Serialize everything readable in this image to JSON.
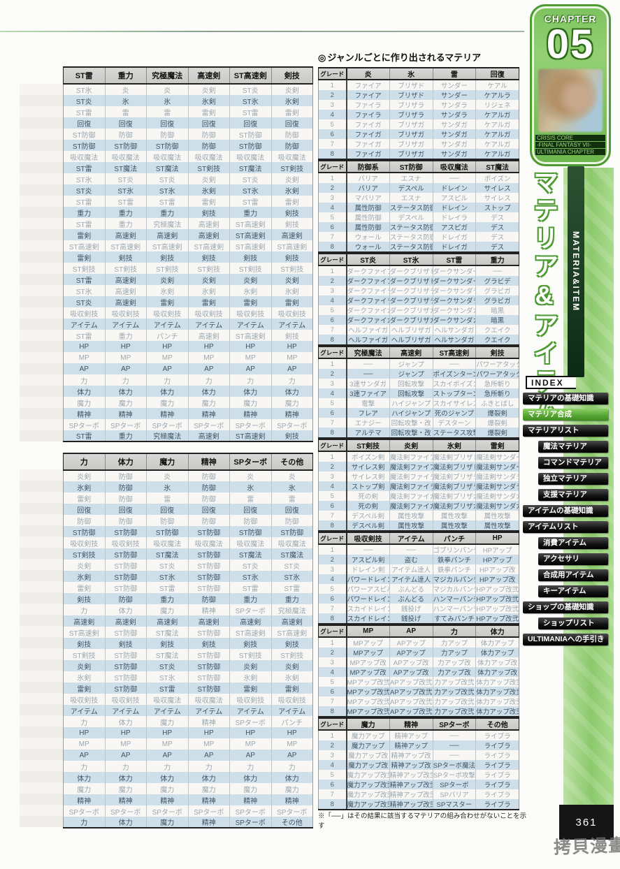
{
  "left_tables": [
    {
      "headers": [
        "ST雷",
        "重力",
        "究極魔法",
        "高速剣",
        "ST高速剣",
        "剣技"
      ],
      "rows": [
        [
          "ST氷",
          "炎",
          "炎",
          "炎剣",
          "ST炎",
          "炎剣"
        ],
        [
          "ST炎",
          "氷",
          "氷",
          "氷剣",
          "ST氷",
          "氷剣"
        ],
        [
          "ST雷",
          "雷",
          "雷",
          "雷剣",
          "ST雷",
          "雷剣"
        ],
        [
          "回復",
          "回復",
          "回復",
          "回復",
          "回復",
          "回復"
        ],
        [
          "ST防御",
          "防御",
          "防御",
          "防御",
          "ST防御",
          "防御"
        ],
        [
          "ST防御",
          "ST防御",
          "ST防御",
          "防御",
          "ST防御",
          "防御"
        ],
        [
          "吸収魔法",
          "吸収魔法",
          "吸収魔法",
          "吸収魔法",
          "吸収魔法",
          "吸収魔法"
        ],
        [
          "ST雷",
          "ST魔法",
          "ST魔法",
          "ST剣技",
          "ST魔法",
          "ST剣技"
        ],
        [
          "ST氷",
          "ST炎",
          "ST炎",
          "炎剣",
          "ST炎",
          "炎剣"
        ],
        [
          "ST炎",
          "ST氷",
          "ST氷",
          "氷剣",
          "ST氷",
          "氷剣"
        ],
        [
          "ST雷",
          "ST雷",
          "ST雷",
          "雷剣",
          "ST雷",
          "雷剣"
        ],
        [
          "重力",
          "重力",
          "重力",
          "剣技",
          "重力",
          "剣技"
        ],
        [
          "ST雷",
          "重力",
          "究極魔法",
          "高速剣",
          "ST高速剣",
          "剣技"
        ],
        [
          "雷剣",
          "高速剣",
          "高速剣",
          "高速剣",
          "ST高速剣",
          "高速剣"
        ],
        [
          "ST高速剣",
          "ST高速剣",
          "ST高速剣",
          "ST高速剣",
          "ST高速剣",
          "ST高速剣"
        ],
        [
          "雷剣",
          "剣技",
          "剣技",
          "剣技",
          "剣技",
          "剣技"
        ],
        [
          "ST剣技",
          "ST剣技",
          "ST剣技",
          "ST剣技",
          "ST剣技",
          "ST剣技"
        ],
        [
          "ST雷",
          "高速剣",
          "炎剣",
          "炎剣",
          "炎剣",
          "炎剣"
        ],
        [
          "ST氷",
          "高速剣",
          "氷剣",
          "氷剣",
          "氷剣",
          "氷剣"
        ],
        [
          "ST炎",
          "高速剣",
          "雷剣",
          "雷剣",
          "雷剣",
          "雷剣"
        ],
        [
          "吸収剣技",
          "吸収剣技",
          "吸収剣技",
          "吸収剣技",
          "吸収剣技",
          "吸収剣技"
        ],
        [
          "アイテム",
          "アイテム",
          "アイテム",
          "アイテム",
          "アイテム",
          "アイテム"
        ],
        [
          "ST雷",
          "重力",
          "パンチ",
          "高速剣",
          "ST高速剣",
          "剣技"
        ],
        [
          "HP",
          "HP",
          "HP",
          "HP",
          "HP",
          "HP"
        ],
        [
          "MP",
          "MP",
          "MP",
          "MP",
          "MP",
          "MP"
        ],
        [
          "AP",
          "AP",
          "AP",
          "AP",
          "AP",
          "AP"
        ],
        [
          "力",
          "力",
          "力",
          "力",
          "力",
          "力"
        ],
        [
          "体力",
          "体力",
          "体力",
          "体力",
          "体力",
          "体力"
        ],
        [
          "魔力",
          "魔力",
          "魔力",
          "魔力",
          "魔力",
          "魔力"
        ],
        [
          "精神",
          "精神",
          "精神",
          "精神",
          "精神",
          "精神"
        ],
        [
          "SPターボ",
          "SPターボ",
          "SPターボ",
          "SPターボ",
          "SPターボ",
          "SPターボ"
        ],
        [
          "ST雷",
          "重力",
          "究極魔法",
          "高速剣",
          "ST高速剣",
          "剣技"
        ]
      ]
    },
    {
      "headers": [
        "力",
        "体力",
        "魔力",
        "精神",
        "SPターボ",
        "その他"
      ],
      "rows": [
        [
          "炎剣",
          "防御",
          "炎",
          "防御",
          "炎",
          "炎"
        ],
        [
          "氷剣",
          "防御",
          "氷",
          "防御",
          "氷",
          "氷"
        ],
        [
          "雷剣",
          "防御",
          "雷",
          "防御",
          "雷",
          "雷"
        ],
        [
          "回復",
          "回復",
          "回復",
          "回復",
          "回復",
          "回復"
        ],
        [
          "防御",
          "防御",
          "防御",
          "防御",
          "防御",
          "防御"
        ],
        [
          "ST防御",
          "ST防御",
          "ST防御",
          "ST防御",
          "ST防御",
          "ST防御"
        ],
        [
          "吸収剣技",
          "吸収剣技",
          "吸収魔法",
          "吸収魔法",
          "吸収魔法",
          "吸収魔法"
        ],
        [
          "ST剣技",
          "ST防御",
          "ST魔法",
          "ST防御",
          "ST魔法",
          "ST魔法"
        ],
        [
          "炎剣",
          "ST防御",
          "ST炎",
          "ST防御",
          "ST炎",
          "ST炎"
        ],
        [
          "氷剣",
          "ST防御",
          "ST氷",
          "ST防御",
          "ST氷",
          "ST氷"
        ],
        [
          "雷剣",
          "ST防御",
          "ST雷",
          "ST防御",
          "ST雷",
          "ST雷"
        ],
        [
          "剣技",
          "防御",
          "重力",
          "防御",
          "重力",
          "重力"
        ],
        [
          "力",
          "体力",
          "魔力",
          "精神",
          "SPターボ",
          "究極魔法"
        ],
        [
          "高速剣",
          "高速剣",
          "高速剣",
          "高速剣",
          "高速剣",
          "高速剣"
        ],
        [
          "ST高速剣",
          "ST防御",
          "ST魔法",
          "ST防御",
          "ST高速剣",
          "ST高速剣"
        ],
        [
          "剣技",
          "剣技",
          "剣技",
          "剣技",
          "剣技",
          "剣技"
        ],
        [
          "ST剣技",
          "ST防御",
          "ST魔法",
          "ST防御",
          "ST剣技",
          "ST剣技"
        ],
        [
          "炎剣",
          "ST防御",
          "ST炎",
          "ST防御",
          "炎剣",
          "炎剣"
        ],
        [
          "氷剣",
          "ST防御",
          "ST氷",
          "ST防御",
          "氷剣",
          "氷剣"
        ],
        [
          "雷剣",
          "ST防御",
          "ST雷",
          "ST防御",
          "雷剣",
          "雷剣"
        ],
        [
          "吸収剣技",
          "吸収剣技",
          "吸収魔法",
          "吸収魔法",
          "吸収剣技",
          "吸収剣技"
        ],
        [
          "アイテム",
          "アイテム",
          "アイテム",
          "アイテム",
          "アイテム",
          "アイテム"
        ],
        [
          "力",
          "体力",
          "魔力",
          "精神",
          "SPターボ",
          "パンチ"
        ],
        [
          "HP",
          "HP",
          "HP",
          "HP",
          "HP",
          "HP"
        ],
        [
          "MP",
          "MP",
          "MP",
          "MP",
          "MP",
          "MP"
        ],
        [
          "AP",
          "AP",
          "AP",
          "AP",
          "AP",
          "AP"
        ],
        [
          "力",
          "力",
          "力",
          "力",
          "力",
          "力"
        ],
        [
          "体力",
          "体力",
          "体力",
          "体力",
          "体力",
          "体力"
        ],
        [
          "魔力",
          "魔力",
          "魔力",
          "魔力",
          "魔力",
          "魔力"
        ],
        [
          "精神",
          "精神",
          "精神",
          "精神",
          "精神",
          "精神"
        ],
        [
          "SPターボ",
          "SPターボ",
          "SPターボ",
          "SPターボ",
          "SPターボ",
          "SPターボ"
        ],
        [
          "力",
          "体力",
          "魔力",
          "精神",
          "SPターボ",
          "その他"
        ]
      ]
    }
  ],
  "genre_section": {
    "title": "ジャンルごとに作り出されるマテリア",
    "bullet": "◎",
    "grade_label": "グレード",
    "tables": [
      {
        "headers": [
          "炎",
          "氷",
          "雷",
          "回復"
        ],
        "rows": [
          [
            "ファイア",
            "ブリザド",
            "サンダー",
            "ケアル"
          ],
          [
            "ファイア",
            "ブリザド",
            "サンダー",
            "ケアルラ"
          ],
          [
            "ファイラ",
            "ブリザラ",
            "サンダラ",
            "リジェネ"
          ],
          [
            "ファイラ",
            "ブリザラ",
            "サンダラ",
            "ケアルガ"
          ],
          [
            "ファイガ",
            "ブリザガ",
            "サンダガ",
            "ケアルガ"
          ],
          [
            "ファイガ",
            "ブリザガ",
            "サンダガ",
            "ケアルガ"
          ],
          [
            "ファイガ",
            "ブリザガ",
            "サンダガ",
            "ケアルガ"
          ],
          [
            "ファイガ",
            "ブリザガ",
            "サンダガ",
            "ケアルガ"
          ]
        ]
      },
      {
        "headers": [
          "防御系",
          "ST防御",
          "吸収魔法",
          "ST魔法"
        ],
        "rows": [
          [
            "バリア",
            "エスナ",
            "──",
            "ポイズン"
          ],
          [
            "バリア",
            "デスペル",
            "ドレイン",
            "サイレス"
          ],
          [
            "マバリア",
            "エスナ",
            "アスピル",
            "サイレス"
          ],
          [
            "属性防御",
            "ステータス防御",
            "ドレイン",
            "ストップ"
          ],
          [
            "属性防御",
            "デスペル",
            "ドレイラ",
            "デス"
          ],
          [
            "属性防御",
            "ステータス防御",
            "アスピガ",
            "デス"
          ],
          [
            "ウォール",
            "ステータス防御",
            "ドレイガ",
            "デス"
          ],
          [
            "ウォール",
            "ステータス防御",
            "ドレイガ",
            "デス"
          ]
        ]
      },
      {
        "headers": [
          "ST炎",
          "ST氷",
          "ST雷",
          "重力"
        ],
        "rows": [
          [
            "ダークファイア",
            "ダークブリザド",
            "ダークサンダー",
            "──"
          ],
          [
            "ダークファイア",
            "ダークブリザド",
            "ダークサンダー",
            "グラビデ"
          ],
          [
            "ダークファイラ",
            "ダークブリザラ",
            "ダークサンダラ",
            "グラビガ"
          ],
          [
            "ダークファイラ",
            "ダークブリザラ",
            "ダークサンダラ",
            "グラビガ"
          ],
          [
            "ダークファイガ",
            "ダークブリザガ",
            "ダークサンダガ",
            "暗黒"
          ],
          [
            "ダークファイガ",
            "ダークブリザガ",
            "ダークサンダガ",
            "暗黒"
          ],
          [
            "ヘルファイガ",
            "ヘルブリザガ",
            "ヘルサンダガ",
            "クエイク"
          ],
          [
            "ヘルファイガ",
            "ヘルブリザガ",
            "ヘルサンダガ",
            "クエイク"
          ]
        ]
      },
      {
        "headers": [
          "究極魔法",
          "高速剣",
          "ST高速剣",
          "剣技"
        ],
        "rows": [
          [
            "──",
            "ジャンプ",
            "──",
            "パワーアタック"
          ],
          [
            "──",
            "ジャンプ",
            "ポイズンターン",
            "パワーアタック"
          ],
          [
            "3連サンダガ",
            "回転攻撃",
            "スカイポイズン",
            "急所斬り"
          ],
          [
            "3連ファイア",
            "回転攻撃",
            "ストップターン",
            "急所斬り"
          ],
          [
            "電撃",
            "ハイジャンプ",
            "スカイサイレス",
            "ふきとばし"
          ],
          [
            "フレア",
            "ハイジャンプ",
            "死のジャンプ",
            "爆裂剣"
          ],
          [
            "エナジー",
            "回転攻撃・改",
            "デスターン",
            "爆裂剣"
          ],
          [
            "アルテマ",
            "回転攻撃・改",
            "ステータス攻撃",
            "爆裂剣"
          ]
        ]
      },
      {
        "headers": [
          "ST剣技",
          "炎剣",
          "氷剣",
          "雷剣"
        ],
        "rows": [
          [
            "ポイズン剣",
            "魔法剣ファイア",
            "魔法剣ブリザド",
            "魔法剣サンダー"
          ],
          [
            "サイレス剣",
            "魔法剣ファイア",
            "魔法剣ブリザド",
            "魔法剣サンダー"
          ],
          [
            "サイレス剣",
            "魔法剣ファイラ",
            "魔法剣ブリザラ",
            "魔法剣サンダラ"
          ],
          [
            "ストップ剣",
            "魔法剣ファイラ",
            "魔法剣ブリザラ",
            "魔法剣サンダラ"
          ],
          [
            "死の剣",
            "魔法剣ファイガ",
            "魔法剣ブリザガ",
            "魔法剣サンダガ"
          ],
          [
            "死の剣",
            "魔法剣ファイガ",
            "魔法剣ブリザガ",
            "魔法剣サンダガ"
          ],
          [
            "デスペル剣",
            "属性攻撃",
            "属性攻撃",
            "属性攻撃"
          ],
          [
            "デスペル剣",
            "属性攻撃",
            "属性攻撃",
            "属性攻撃"
          ]
        ]
      },
      {
        "headers": [
          "吸収剣技",
          "アイテム",
          "パンチ",
          "HP"
        ],
        "rows": [
          [
            "──",
            "──",
            "ゴブリンパンチ",
            "HPアップ"
          ],
          [
            "アスピル剣",
            "盗む",
            "鉄拳パンチ",
            "HPアップ"
          ],
          [
            "ドレイン剣",
            "アイテム達人",
            "鉄拳パンチ",
            "HPアップ改"
          ],
          [
            "パワードレイン",
            "アイテム達人",
            "マジカルパンチ",
            "HPアップ改"
          ],
          [
            "パワーアスピル",
            "ぶんどる",
            "マジカルパンチ",
            "HPアップ改弐"
          ],
          [
            "パワードレイン",
            "ぶんどる",
            "ハンマーパンチ",
            "HPアップ改弐"
          ],
          [
            "スカイドレイン",
            "銭投げ",
            "ハンマーパンチ",
            "HPアップ改弐"
          ],
          [
            "スカイドレイン",
            "銭投げ",
            "すてみパンチ",
            "HPアップ改弐"
          ]
        ]
      },
      {
        "headers": [
          "MP",
          "AP",
          "力",
          "体力"
        ],
        "rows": [
          [
            "MPアップ",
            "APアップ",
            "力アップ",
            "体力アップ"
          ],
          [
            "MPアップ",
            "APアップ",
            "力アップ",
            "体力アップ"
          ],
          [
            "MPアップ改",
            "APアップ改",
            "力アップ改",
            "体力アップ改"
          ],
          [
            "MPアップ改",
            "APアップ改",
            "力アップ改",
            "体力アップ改"
          ],
          [
            "MPアップ改弐",
            "APアップ改弐",
            "力アップ改弐",
            "体力アップ改弐"
          ],
          [
            "MPアップ改弐",
            "APアップ改弐",
            "力アップ改弐",
            "体力アップ改弐"
          ],
          [
            "MPアップ改弐",
            "APアップ改弐",
            "力アップ改弐",
            "体力アップ改弐"
          ],
          [
            "MPアップ改弐",
            "APアップ改弐",
            "力アップ改弐",
            "体力アップ改弐"
          ]
        ]
      },
      {
        "headers": [
          "魔力",
          "精神",
          "SPターボ",
          "その他"
        ],
        "rows": [
          [
            "魔力アップ",
            "精神アップ",
            "──",
            "ライブラ"
          ],
          [
            "魔力アップ",
            "精神アップ",
            "──",
            "ライブラ"
          ],
          [
            "魔力アップ改",
            "精神アップ改",
            "──",
            "ライブラ"
          ],
          [
            "魔力アップ改",
            "精神アップ改",
            "SPターボ魔法",
            "ライブラ"
          ],
          [
            "魔力アップ改弐",
            "精神アップ改弐",
            "SPターボ攻撃",
            "ライブラ"
          ],
          [
            "魔力アップ改弐",
            "精神アップ改弐",
            "SPターボ",
            "ライブラ"
          ],
          [
            "魔力アップ改弐",
            "精神アップ改弐",
            "SPバリア",
            "ライブラ"
          ],
          [
            "魔力アップ改弐",
            "精神アップ改弐",
            "SPマスター",
            "ライブラ"
          ]
        ]
      }
    ],
    "footnote": "※「──」はその結果に該当するマテリアの組み合わせがないことを示す"
  },
  "sidebar": {
    "chapter_label": "CHAPTER",
    "chapter_number": "05",
    "caption_lines": [
      "CRISIS CORE",
      "-FINAL FANTASY VII-",
      "ULTIMANIA CHAPTER"
    ],
    "vertical_title": "マテリア&アイテム",
    "vertical_subtitle": "MATERIA&ITEM",
    "index_label": "INDEX",
    "nav": [
      {
        "label": "マテリアの基礎知識",
        "type": "item"
      },
      {
        "label": "マテリア合成",
        "type": "active"
      },
      {
        "label": "マテリアリスト",
        "type": "item"
      },
      {
        "label": "魔法マテリア",
        "type": "sub"
      },
      {
        "label": "コマンドマテリア",
        "type": "sub"
      },
      {
        "label": "独立マテリア",
        "type": "sub"
      },
      {
        "label": "支援マテリア",
        "type": "sub"
      },
      {
        "label": "アイテムの基礎知識",
        "type": "item"
      },
      {
        "label": "アイテムリスト",
        "type": "item"
      },
      {
        "label": "消費アイテム",
        "type": "sub"
      },
      {
        "label": "アクセサリ",
        "type": "sub"
      },
      {
        "label": "合成用アイテム",
        "type": "sub"
      },
      {
        "label": "キーアイテム",
        "type": "sub"
      },
      {
        "label": "ショップの基礎知識",
        "type": "item"
      },
      {
        "label": "ショップリスト",
        "type": "sub"
      },
      {
        "label": "ULTIMANIAへの手引き",
        "type": "item"
      }
    ]
  },
  "page": {
    "number": "361",
    "watermark": "拷貝漫畫"
  }
}
